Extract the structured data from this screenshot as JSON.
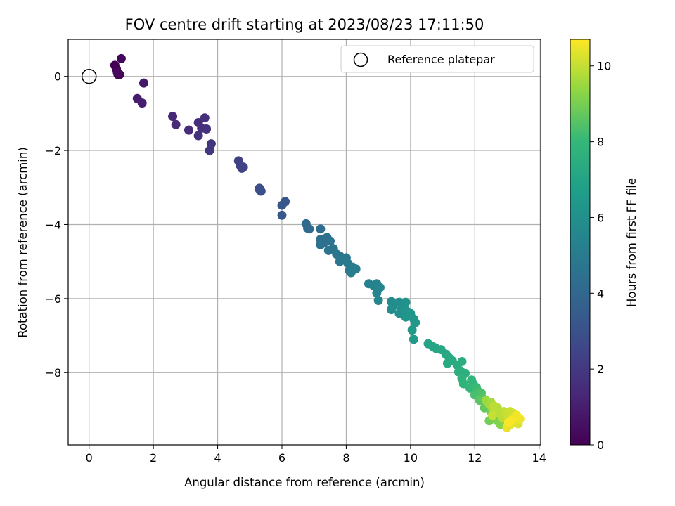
{
  "chart_data": {
    "type": "scatter",
    "title": "FOV centre drift starting at 2023/08/23 17:11:50",
    "xlabel": "Angular distance from reference (arcmin)",
    "ylabel": "Rotation from reference (arcmin)",
    "xlim": [
      -0.65,
      14.05
    ],
    "ylim": [
      -9.95,
      1.0
    ],
    "xticks": [
      0,
      2,
      4,
      6,
      8,
      10,
      12,
      14
    ],
    "yticks": [
      0,
      -2,
      -4,
      -6,
      -8
    ],
    "ytick_labels": [
      "0",
      "−2",
      "−4",
      "−6",
      "−8"
    ],
    "grid": true,
    "colormap": "viridis",
    "colorbar": {
      "label": "Hours from first FF file",
      "range": [
        0,
        10.7
      ],
      "ticks": [
        0,
        2,
        4,
        6,
        8,
        10
      ]
    },
    "legend": {
      "label": "Reference platepar",
      "placement": "top-right"
    },
    "reference_point": {
      "x": 0,
      "y": 0
    },
    "points": [
      {
        "x": 0.8,
        "y": 0.3,
        "t": 0.0
      },
      {
        "x": 0.85,
        "y": 0.2,
        "t": 0.05
      },
      {
        "x": 0.9,
        "y": 0.05,
        "t": 0.1
      },
      {
        "x": 0.95,
        "y": 0.05,
        "t": 0.15
      },
      {
        "x": 1.0,
        "y": 0.48,
        "t": 0.2
      },
      {
        "x": 0.88,
        "y": 0.1,
        "t": 0.25
      },
      {
        "x": 1.7,
        "y": -0.18,
        "t": 0.8
      },
      {
        "x": 1.5,
        "y": -0.6,
        "t": 0.9
      },
      {
        "x": 1.65,
        "y": -0.72,
        "t": 1.0
      },
      {
        "x": 2.6,
        "y": -1.08,
        "t": 1.3
      },
      {
        "x": 2.7,
        "y": -1.3,
        "t": 1.4
      },
      {
        "x": 3.1,
        "y": -1.45,
        "t": 1.5
      },
      {
        "x": 3.4,
        "y": -1.25,
        "t": 1.55
      },
      {
        "x": 3.5,
        "y": -1.4,
        "t": 1.6
      },
      {
        "x": 3.6,
        "y": -1.12,
        "t": 1.65
      },
      {
        "x": 3.65,
        "y": -1.42,
        "t": 1.7
      },
      {
        "x": 3.4,
        "y": -1.6,
        "t": 1.75
      },
      {
        "x": 3.8,
        "y": -1.82,
        "t": 1.85
      },
      {
        "x": 3.75,
        "y": -2.0,
        "t": 1.9
      },
      {
        "x": 4.65,
        "y": -2.28,
        "t": 2.3
      },
      {
        "x": 4.7,
        "y": -2.4,
        "t": 2.35
      },
      {
        "x": 4.75,
        "y": -2.48,
        "t": 2.4
      },
      {
        "x": 4.8,
        "y": -2.45,
        "t": 2.45
      },
      {
        "x": 5.3,
        "y": -3.02,
        "t": 2.8
      },
      {
        "x": 5.35,
        "y": -3.1,
        "t": 2.85
      },
      {
        "x": 5.3,
        "y": -3.05,
        "t": 2.9
      },
      {
        "x": 6.1,
        "y": -3.38,
        "t": 3.2
      },
      {
        "x": 6.0,
        "y": -3.48,
        "t": 3.25
      },
      {
        "x": 6.0,
        "y": -3.75,
        "t": 3.3
      },
      {
        "x": 6.75,
        "y": -3.98,
        "t": 4.0
      },
      {
        "x": 6.8,
        "y": -4.1,
        "t": 4.05
      },
      {
        "x": 6.85,
        "y": -4.12,
        "t": 4.1
      },
      {
        "x": 7.2,
        "y": -4.12,
        "t": 4.3
      },
      {
        "x": 7.2,
        "y": -4.4,
        "t": 4.35
      },
      {
        "x": 7.3,
        "y": -4.5,
        "t": 4.4
      },
      {
        "x": 7.4,
        "y": -4.35,
        "t": 4.45
      },
      {
        "x": 7.2,
        "y": -4.55,
        "t": 4.5
      },
      {
        "x": 7.5,
        "y": -4.45,
        "t": 4.55
      },
      {
        "x": 7.45,
        "y": -4.7,
        "t": 4.6
      },
      {
        "x": 7.6,
        "y": -4.65,
        "t": 4.65
      },
      {
        "x": 7.7,
        "y": -4.8,
        "t": 4.7
      },
      {
        "x": 7.8,
        "y": -4.85,
        "t": 4.75
      },
      {
        "x": 7.8,
        "y": -5.0,
        "t": 4.8
      },
      {
        "x": 8.0,
        "y": -4.9,
        "t": 4.85
      },
      {
        "x": 8.05,
        "y": -5.05,
        "t": 4.9
      },
      {
        "x": 8.1,
        "y": -5.25,
        "t": 4.95
      },
      {
        "x": 8.15,
        "y": -5.3,
        "t": 5.0
      },
      {
        "x": 8.3,
        "y": -5.2,
        "t": 5.05
      },
      {
        "x": 8.2,
        "y": -5.15,
        "t": 5.0
      },
      {
        "x": 8.7,
        "y": -5.6,
        "t": 5.3
      },
      {
        "x": 8.85,
        "y": -5.65,
        "t": 5.35
      },
      {
        "x": 8.95,
        "y": -5.6,
        "t": 5.4
      },
      {
        "x": 8.95,
        "y": -5.85,
        "t": 5.45
      },
      {
        "x": 9.0,
        "y": -6.05,
        "t": 5.5
      },
      {
        "x": 9.05,
        "y": -5.7,
        "t": 5.5
      },
      {
        "x": 9.4,
        "y": -6.08,
        "t": 5.8
      },
      {
        "x": 9.45,
        "y": -6.2,
        "t": 5.85
      },
      {
        "x": 9.4,
        "y": -6.3,
        "t": 5.9
      },
      {
        "x": 9.65,
        "y": -6.1,
        "t": 5.95
      },
      {
        "x": 9.7,
        "y": -6.3,
        "t": 6.0
      },
      {
        "x": 9.65,
        "y": -6.4,
        "t": 6.05
      },
      {
        "x": 9.8,
        "y": -6.25,
        "t": 6.1
      },
      {
        "x": 9.85,
        "y": -6.1,
        "t": 6.15
      },
      {
        "x": 9.9,
        "y": -6.35,
        "t": 6.2
      },
      {
        "x": 9.85,
        "y": -6.5,
        "t": 6.25
      },
      {
        "x": 10.0,
        "y": -6.4,
        "t": 6.3
      },
      {
        "x": 10.1,
        "y": -6.55,
        "t": 6.35
      },
      {
        "x": 10.15,
        "y": -6.65,
        "t": 6.4
      },
      {
        "x": 10.05,
        "y": -6.85,
        "t": 6.45
      },
      {
        "x": 10.1,
        "y": -7.1,
        "t": 6.5
      },
      {
        "x": 10.55,
        "y": -7.22,
        "t": 7.0
      },
      {
        "x": 10.7,
        "y": -7.3,
        "t": 7.05
      },
      {
        "x": 10.8,
        "y": -7.35,
        "t": 7.1
      },
      {
        "x": 10.95,
        "y": -7.38,
        "t": 7.15
      },
      {
        "x": 11.1,
        "y": -7.5,
        "t": 7.2
      },
      {
        "x": 11.2,
        "y": -7.6,
        "t": 7.25
      },
      {
        "x": 11.15,
        "y": -7.75,
        "t": 7.3
      },
      {
        "x": 11.3,
        "y": -7.68,
        "t": 7.35
      },
      {
        "x": 11.45,
        "y": -7.8,
        "t": 7.4
      },
      {
        "x": 11.6,
        "y": -7.7,
        "t": 7.45
      },
      {
        "x": 11.55,
        "y": -7.95,
        "t": 7.5
      },
      {
        "x": 11.5,
        "y": -7.98,
        "t": 7.55
      },
      {
        "x": 11.7,
        "y": -8.02,
        "t": 7.6
      },
      {
        "x": 11.6,
        "y": -8.15,
        "t": 7.7
      },
      {
        "x": 11.65,
        "y": -8.3,
        "t": 7.75
      },
      {
        "x": 11.9,
        "y": -8.2,
        "t": 7.85
      },
      {
        "x": 11.95,
        "y": -8.3,
        "t": 7.9
      },
      {
        "x": 11.85,
        "y": -8.42,
        "t": 7.95
      },
      {
        "x": 12.05,
        "y": -8.4,
        "t": 8.1
      },
      {
        "x": 12.1,
        "y": -8.5,
        "t": 8.2
      },
      {
        "x": 12.0,
        "y": -8.6,
        "t": 8.3
      },
      {
        "x": 12.2,
        "y": -8.55,
        "t": 8.4
      },
      {
        "x": 12.25,
        "y": -8.7,
        "t": 8.5
      },
      {
        "x": 12.15,
        "y": -8.75,
        "t": 8.6
      },
      {
        "x": 12.3,
        "y": -8.95,
        "t": 8.7
      },
      {
        "x": 12.4,
        "y": -8.85,
        "t": 8.8
      },
      {
        "x": 12.5,
        "y": -9.05,
        "t": 8.9
      },
      {
        "x": 12.45,
        "y": -9.3,
        "t": 8.95
      },
      {
        "x": 12.6,
        "y": -9.2,
        "t": 9.05
      },
      {
        "x": 12.7,
        "y": -9.3,
        "t": 9.1
      },
      {
        "x": 12.8,
        "y": -9.4,
        "t": 9.2
      },
      {
        "x": 12.75,
        "y": -9.05,
        "t": 9.3
      },
      {
        "x": 12.35,
        "y": -8.75,
        "t": 9.5
      },
      {
        "x": 12.45,
        "y": -8.85,
        "t": 9.55
      },
      {
        "x": 12.5,
        "y": -8.8,
        "t": 9.6
      },
      {
        "x": 12.55,
        "y": -8.95,
        "t": 9.65
      },
      {
        "x": 12.6,
        "y": -9.0,
        "t": 9.7
      },
      {
        "x": 12.65,
        "y": -9.05,
        "t": 9.75
      },
      {
        "x": 12.7,
        "y": -8.95,
        "t": 9.8
      },
      {
        "x": 12.75,
        "y": -9.1,
        "t": 9.85
      },
      {
        "x": 12.85,
        "y": -9.2,
        "t": 9.9
      },
      {
        "x": 12.9,
        "y": -9.05,
        "t": 9.95
      },
      {
        "x": 13.0,
        "y": -9.1,
        "t": 10.0
      },
      {
        "x": 13.05,
        "y": -9.2,
        "t": 10.05
      },
      {
        "x": 13.1,
        "y": -9.05,
        "t": 10.1
      },
      {
        "x": 13.2,
        "y": -9.1,
        "t": 10.15
      },
      {
        "x": 13.25,
        "y": -9.2,
        "t": 10.2
      },
      {
        "x": 13.3,
        "y": -9.3,
        "t": 10.25
      },
      {
        "x": 13.35,
        "y": -9.38,
        "t": 10.3
      },
      {
        "x": 13.2,
        "y": -9.35,
        "t": 10.35
      },
      {
        "x": 13.1,
        "y": -9.4,
        "t": 10.4
      },
      {
        "x": 13.0,
        "y": -9.48,
        "t": 10.45
      },
      {
        "x": 13.4,
        "y": -9.25,
        "t": 10.5
      },
      {
        "x": 13.3,
        "y": -9.15,
        "t": 10.55
      },
      {
        "x": 13.15,
        "y": -9.28,
        "t": 10.6
      },
      {
        "x": 13.05,
        "y": -9.35,
        "t": 10.65
      },
      {
        "x": 12.55,
        "y": -9.15,
        "t": 10.0
      },
      {
        "x": 12.6,
        "y": -8.9,
        "t": 9.9
      }
    ]
  }
}
